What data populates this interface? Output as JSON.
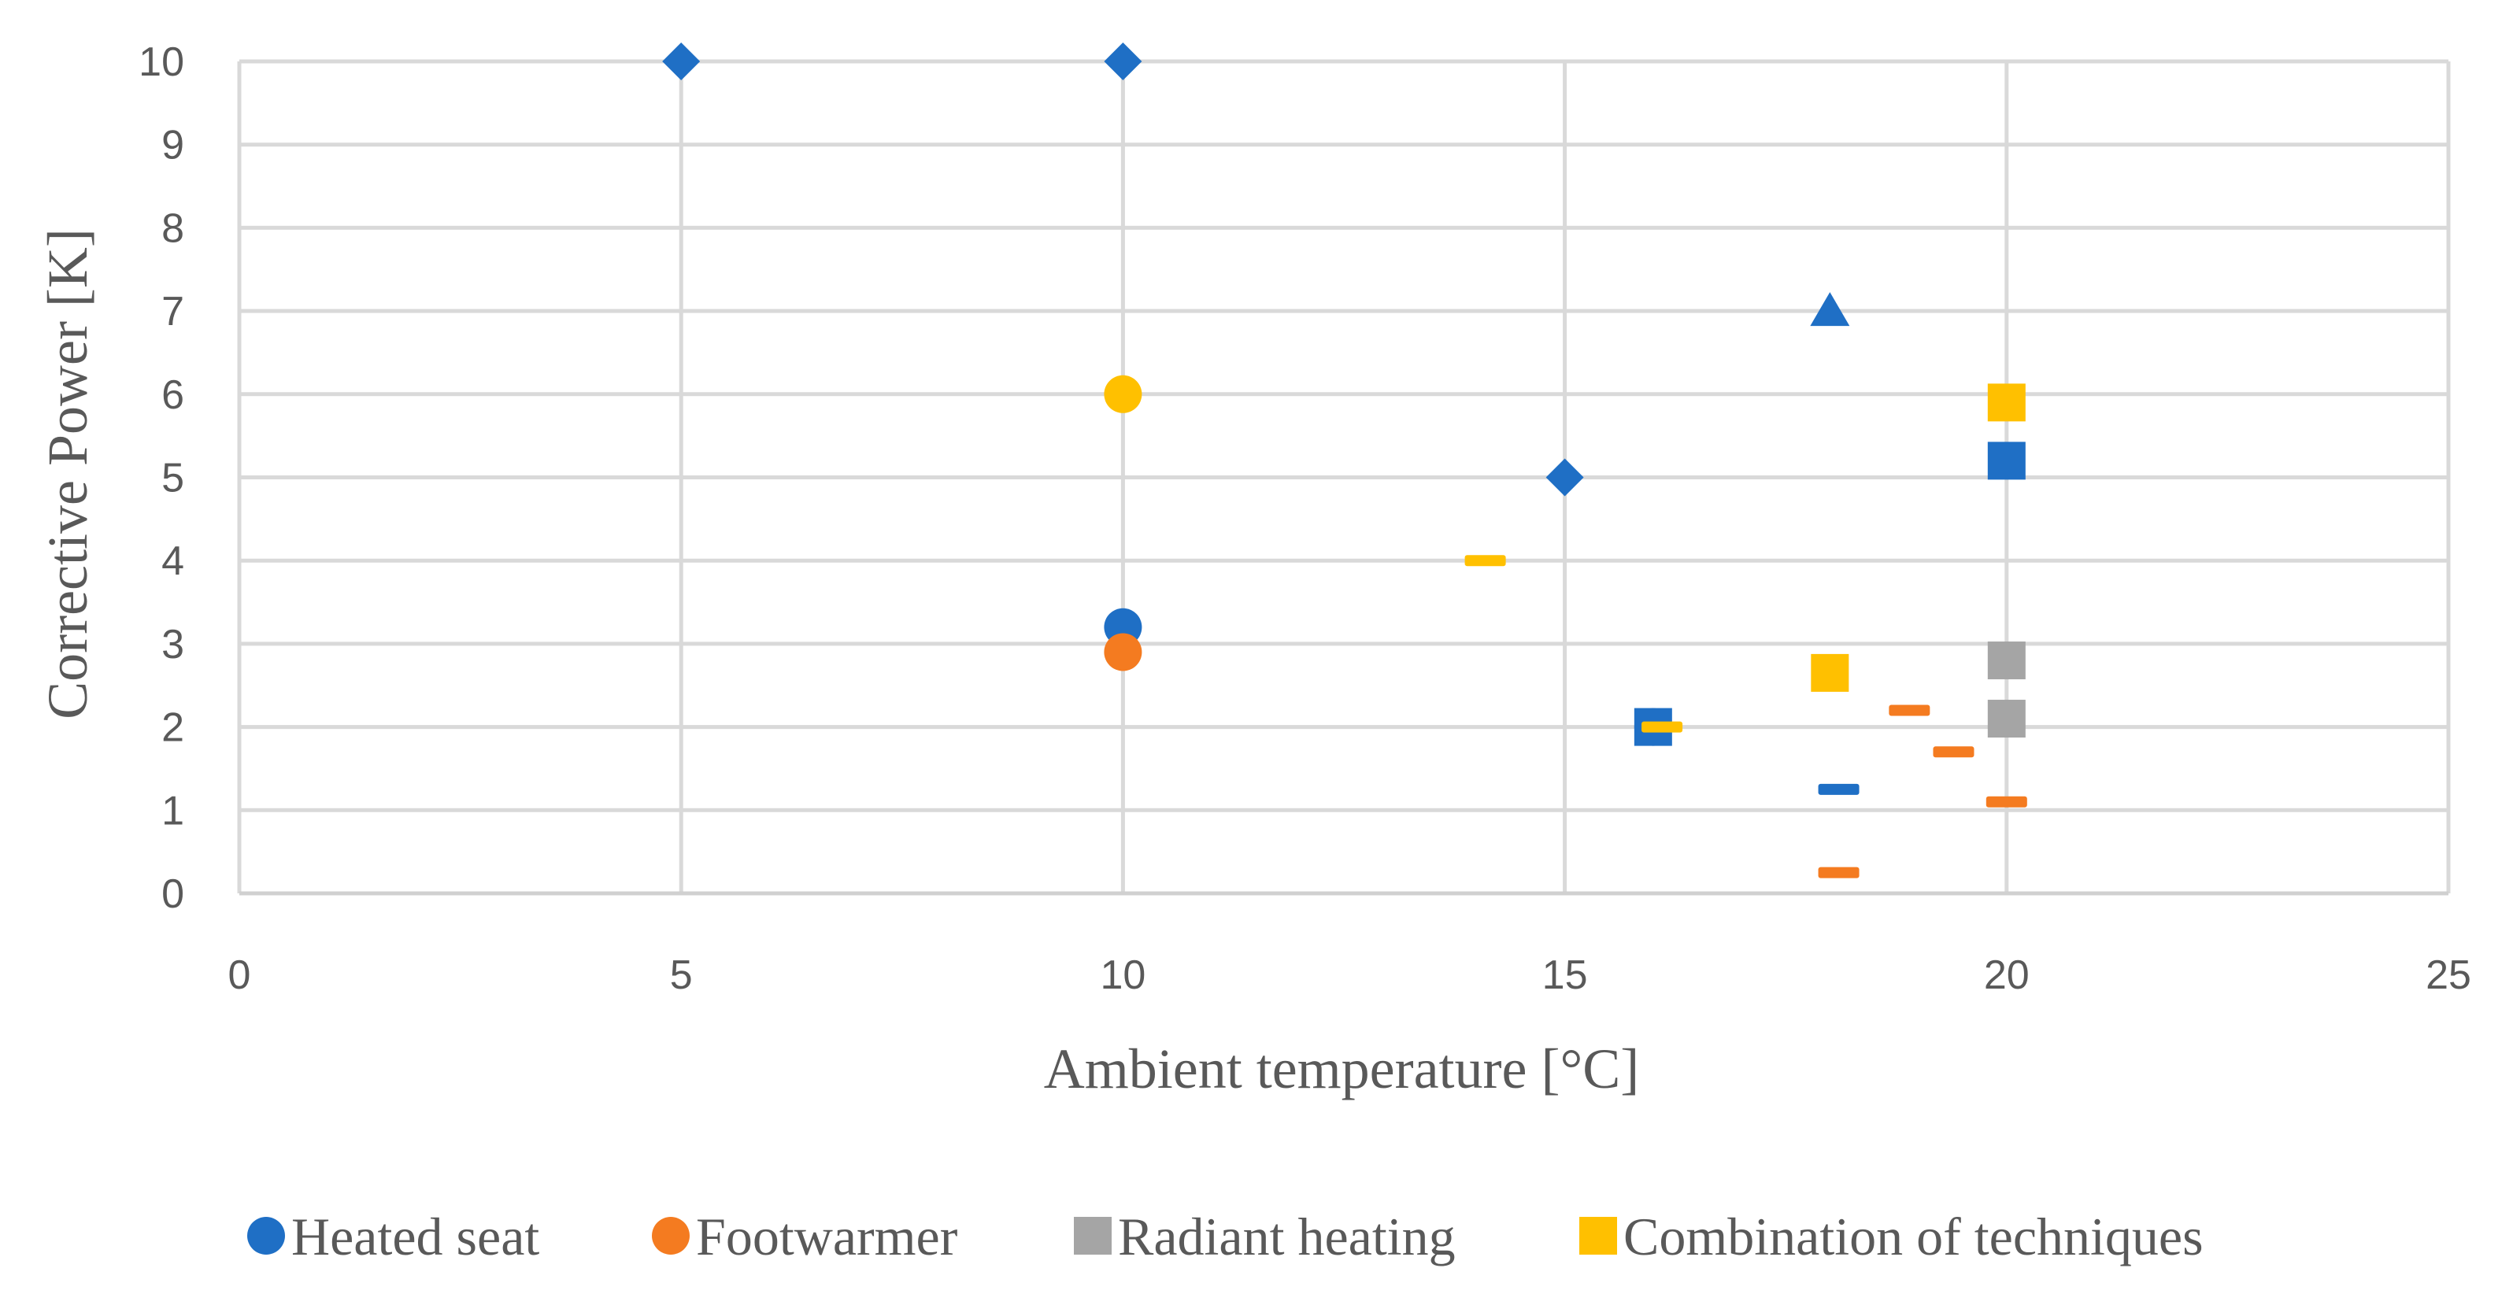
{
  "chart_data": {
    "type": "scatter",
    "title": "",
    "xlabel": "Ambient temperature [°C]",
    "ylabel": "Corrective Power [K]",
    "xlim": [
      0,
      25
    ],
    "ylim": [
      0,
      10
    ],
    "x_ticks": [
      "0",
      "5",
      "10",
      "15",
      "20",
      "25"
    ],
    "y_ticks": [
      "0",
      "1",
      "2",
      "3",
      "4",
      "5",
      "6",
      "7",
      "8",
      "9",
      "10"
    ],
    "grid": true,
    "legend_position": "bottom",
    "series": [
      {
        "name": "Heated seat",
        "color": "#1F6FC5",
        "points": [
          {
            "x": 5,
            "y": 10,
            "marker": "diamond"
          },
          {
            "x": 10,
            "y": 10,
            "marker": "diamond"
          },
          {
            "x": 15,
            "y": 5,
            "marker": "diamond"
          },
          {
            "x": 18,
            "y": 7,
            "marker": "triangle"
          },
          {
            "x": 20,
            "y": 5.2,
            "marker": "square"
          },
          {
            "x": 10,
            "y": 3.2,
            "marker": "circle"
          },
          {
            "x": 16,
            "y": 2,
            "marker": "circle"
          },
          {
            "x": 16,
            "y": 2,
            "marker": "square"
          },
          {
            "x": 18.1,
            "y": 1.25,
            "marker": "dash"
          }
        ]
      },
      {
        "name": "Footwarmer",
        "color": "#F47B20",
        "points": [
          {
            "x": 10,
            "y": 2.9,
            "marker": "circle"
          },
          {
            "x": 18.9,
            "y": 2.2,
            "marker": "dash"
          },
          {
            "x": 19.4,
            "y": 1.7,
            "marker": "dash"
          },
          {
            "x": 20,
            "y": 1.1,
            "marker": "dash"
          },
          {
            "x": 18.1,
            "y": 0.25,
            "marker": "dash"
          }
        ]
      },
      {
        "name": "Radiant heating",
        "color": "#A5A5A5",
        "points": [
          {
            "x": 20,
            "y": 2.8,
            "marker": "square"
          },
          {
            "x": 20,
            "y": 2.1,
            "marker": "square"
          }
        ]
      },
      {
        "name": "Combination of techniques",
        "color": "#FFC000",
        "points": [
          {
            "x": 10,
            "y": 6,
            "marker": "circle"
          },
          {
            "x": 20,
            "y": 5.9,
            "marker": "square"
          },
          {
            "x": 18,
            "y": 2.65,
            "marker": "square"
          },
          {
            "x": 14.1,
            "y": 4,
            "marker": "dash"
          },
          {
            "x": 16.1,
            "y": 2,
            "marker": "dash"
          }
        ]
      }
    ]
  }
}
